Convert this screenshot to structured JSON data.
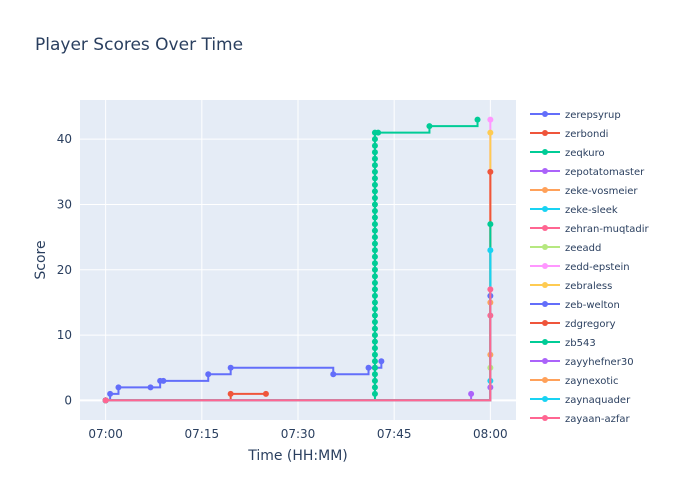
{
  "chart_data": {
    "type": "line",
    "title": "Player Scores Over Time",
    "xlabel": "Time (HH:MM)",
    "ylabel": "Score",
    "x_ticks": [
      "07:00",
      "07:15",
      "07:30",
      "07:45",
      "08:00"
    ],
    "x_tick_minutes": [
      0,
      15,
      30,
      45,
      60
    ],
    "xlim_minutes": [
      -4,
      64
    ],
    "y_ticks": [
      0,
      10,
      20,
      30,
      40
    ],
    "ylim": [
      -3,
      46
    ],
    "grid": true,
    "line_shape": "step",
    "legend_position": "right",
    "series": [
      {
        "name": "zerepsyrup",
        "color": "#636efa",
        "x": [
          0,
          0.7,
          2,
          7,
          8.5,
          9,
          16,
          19.5,
          35.5,
          41,
          42,
          43
        ],
        "y": [
          0,
          1,
          2,
          2,
          3,
          3,
          4,
          5,
          4,
          5,
          5,
          6
        ]
      },
      {
        "name": "zerbondi",
        "color": "#ef553b",
        "x": [
          0,
          19.5,
          25
        ],
        "y": [
          0,
          1,
          1
        ]
      },
      {
        "name": "zeqkuro",
        "color": "#00cc96",
        "x": [
          0,
          42,
          42,
          42,
          42,
          42,
          42,
          42,
          42,
          42,
          42,
          42,
          42,
          42,
          42,
          42,
          42,
          42,
          42,
          42,
          42,
          42,
          42,
          42,
          42,
          42,
          42,
          42,
          42,
          42,
          42,
          42,
          42,
          42,
          42,
          42,
          42,
          42,
          42,
          42,
          42,
          42,
          42.5,
          50.5,
          58
        ],
        "y": [
          0,
          1,
          2,
          3,
          4,
          5,
          6,
          7,
          8,
          9,
          10,
          11,
          12,
          13,
          14,
          15,
          16,
          17,
          18,
          19,
          20,
          21,
          22,
          23,
          24,
          25,
          26,
          27,
          28,
          29,
          30,
          31,
          32,
          33,
          34,
          35,
          36,
          37,
          38,
          39,
          40,
          41,
          41,
          42,
          43
        ]
      },
      {
        "name": "zepotatomaster",
        "color": "#ab63fa",
        "x": [
          0,
          57
        ],
        "y": [
          0,
          1
        ]
      },
      {
        "name": "zeke-vosmeier",
        "color": "#ffa15a",
        "x": [
          0,
          60
        ],
        "y": [
          0,
          7
        ]
      },
      {
        "name": "zeke-sleek",
        "color": "#19d3f3",
        "x": [
          0,
          60
        ],
        "y": [
          0,
          3
        ]
      },
      {
        "name": "zehran-muqtadir",
        "color": "#ff6692",
        "x": [
          0,
          60
        ],
        "y": [
          0,
          13
        ]
      },
      {
        "name": "zeeadd",
        "color": "#b6e880",
        "x": [
          0,
          60
        ],
        "y": [
          0,
          5
        ]
      },
      {
        "name": "zedd-epstein",
        "color": "#ff97ff",
        "x": [
          0,
          60
        ],
        "y": [
          0,
          43
        ]
      },
      {
        "name": "zebraless",
        "color": "#fecb52",
        "x": [
          0,
          60
        ],
        "y": [
          0,
          41
        ]
      },
      {
        "name": "zeb-welton",
        "color": "#636efa",
        "x": [
          0,
          60
        ],
        "y": [
          0,
          16
        ]
      },
      {
        "name": "zdgregory",
        "color": "#ef553b",
        "x": [
          0,
          60
        ],
        "y": [
          0,
          35
        ]
      },
      {
        "name": "zb543",
        "color": "#00cc96",
        "x": [
          0,
          60
        ],
        "y": [
          0,
          27
        ]
      },
      {
        "name": "zayyhefner30",
        "color": "#ab63fa",
        "x": [
          0,
          60
        ],
        "y": [
          0,
          2
        ]
      },
      {
        "name": "zaynexotic",
        "color": "#ffa15a",
        "x": [
          0,
          60
        ],
        "y": [
          0,
          15
        ]
      },
      {
        "name": "zaynaquader",
        "color": "#19d3f3",
        "x": [
          0,
          60
        ],
        "y": [
          0,
          23
        ]
      },
      {
        "name": "zayaan-azfar",
        "color": "#ff6692",
        "x": [
          0,
          60
        ],
        "y": [
          0,
          17
        ]
      }
    ]
  }
}
